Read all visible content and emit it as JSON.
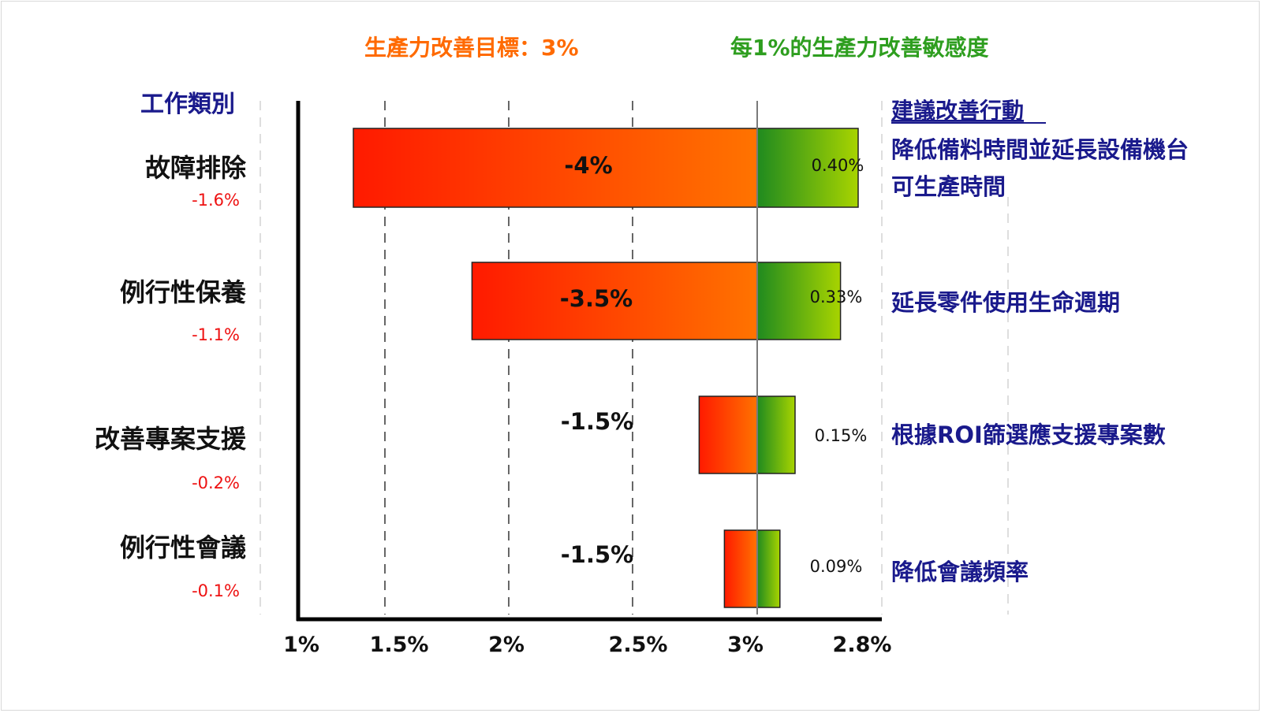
{
  "chart_data": {
    "type": "bar",
    "orientation": "horizontal-tornado",
    "title_left": "生產力改善目標：3%",
    "title_right": "每1%的生產力改善敏感度",
    "category_header": "工作類別",
    "action_header": "建議改善行動",
    "x_tick_labels": [
      "1%",
      "1.5%",
      "2%",
      "2.5%",
      "3%",
      "2.8%"
    ],
    "categories": [
      "故障排除",
      "例行性保養",
      "改善專案支援",
      "例行性會議"
    ],
    "category_values": [
      "-1.6%",
      "-1.1%",
      "-0.2%",
      "-0.1%"
    ],
    "series": [
      {
        "labels": [
          "-4%",
          "-3.5%",
          "-1.5%",
          "-1.5%"
        ],
        "values": [
          1.6,
          1.13,
          0.23,
          0.13
        ],
        "color_start": "#ff1a00",
        "color_end": "#ff7300"
      },
      {
        "labels": [
          "0.40%",
          "0.33%",
          "0.15%",
          "0.09%"
        ],
        "values": [
          0.4,
          0.33,
          0.15,
          0.09
        ],
        "color_start": "#1f8a1f",
        "color_end": "#a8d400"
      }
    ],
    "actions": [
      [
        "降低備料時間並延長設備機台",
        "可生產時間"
      ],
      [
        "延長零件使用生命週期"
      ],
      [
        "根據ROI篩選應支援專案數"
      ],
      [
        "降低會議頻率"
      ]
    ],
    "baseline_value": 3.0,
    "grid": "dashed-vertical"
  }
}
